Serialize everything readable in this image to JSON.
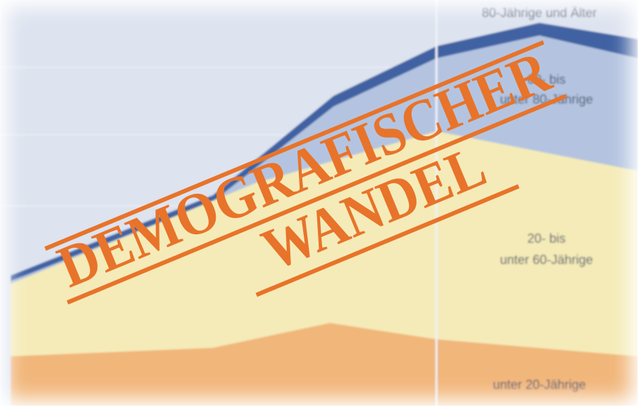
{
  "labels": {
    "oldest": "80-Jährige und Älter",
    "old_1": "60- bis",
    "old_2": "unter 80-Jährige",
    "middle_1": "20- bis",
    "middle_2": "unter 60-Jährige",
    "young": "unter 20-Jährige"
  },
  "stamp": {
    "line_1": "DEMOGRAFISCHER",
    "line_2": "WANDEL"
  }
}
